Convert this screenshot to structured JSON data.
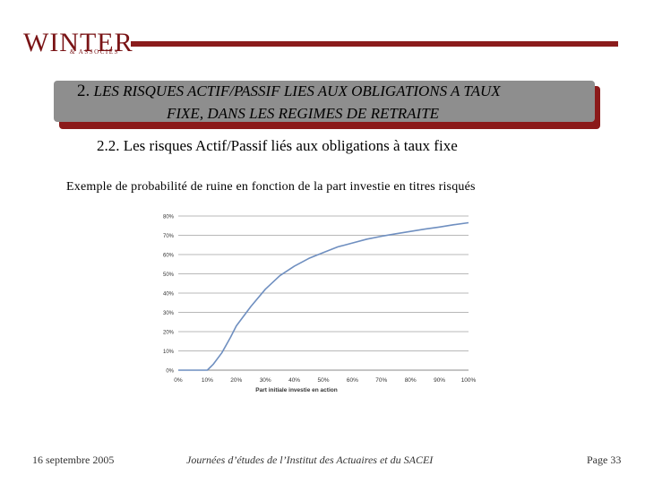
{
  "logo": {
    "main": "WINTER",
    "sub": "& ASSOCIES"
  },
  "header": {
    "number": "2.",
    "line1": "LES RISQUES ACTIF/PASSIF LIES AUX OBLIGATIONS A TAUX",
    "line2": "FIXE, DANS LES REGIMES DE RETRAITE"
  },
  "section_title": "2.2. Les risques Actif/Passif liés aux obligations à taux fixe",
  "caption": "Exemple de probabilité de ruine en fonction de la part investie en titres risqués",
  "chart_data": {
    "type": "line",
    "title": "",
    "xlabel": "Part initiale investie en action",
    "ylabel": "",
    "x_ticks": [
      "0%",
      "10%",
      "20%",
      "30%",
      "40%",
      "50%",
      "60%",
      "70%",
      "80%",
      "90%",
      "100%"
    ],
    "y_ticks": [
      "0%",
      "10%",
      "20%",
      "30%",
      "40%",
      "50%",
      "60%",
      "70%",
      "80%"
    ],
    "xlim": [
      0,
      100
    ],
    "ylim": [
      0,
      80
    ],
    "grid": "horizontal",
    "series": [
      {
        "color": "#6f8fc0",
        "x": [
          0,
          5,
          10,
          12,
          15,
          18,
          20,
          25,
          30,
          35,
          40,
          45,
          50,
          55,
          60,
          65,
          70,
          75,
          80,
          85,
          90,
          95,
          100
        ],
        "y": [
          0,
          0,
          0,
          3,
          9,
          17,
          23,
          33,
          42,
          49,
          54,
          58,
          61,
          64,
          66,
          68,
          69.5,
          70.8,
          72,
          73.2,
          74.3,
          75.5,
          76.5
        ]
      }
    ]
  },
  "footer": {
    "date": "16 septembre 2005",
    "center": "Journées d’études de l’Institut des Actuaires et du SACEI",
    "page": "Page 33"
  }
}
